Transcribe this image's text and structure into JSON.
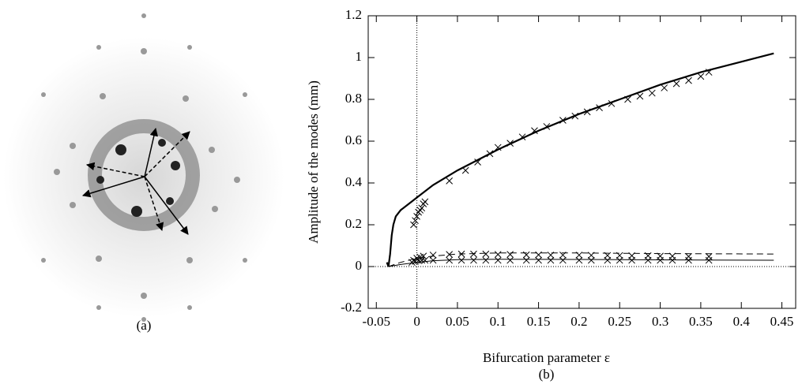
{
  "panel_a": {
    "label": "(a)"
  },
  "chart_data": {
    "type": "line",
    "caption": "(b)",
    "x_label": "Bifurcation parameter ε",
    "y_label": "Amplitude of the modes (mm)",
    "xlim": [
      -0.06,
      0.467
    ],
    "ylim": [
      -0.2,
      1.2
    ],
    "xticks": [
      -0.05,
      0,
      0.05,
      0.1,
      0.15,
      0.2,
      0.25,
      0.3,
      0.35,
      0.4,
      0.45
    ],
    "yticks": [
      -0.2,
      0,
      0.2,
      0.4,
      0.6,
      0.8,
      1,
      1.2
    ],
    "zero_lines": true,
    "series": [
      {
        "style": "solid-thick",
        "color": "#000000",
        "x": [
          -0.037,
          -0.035,
          -0.033,
          -0.031,
          -0.029,
          -0.026,
          -0.02,
          -0.01,
          0,
          0.02,
          0.05,
          0.1,
          0.15,
          0.2,
          0.25,
          0.3,
          0.35,
          0.4,
          0.44
        ],
        "values": [
          0.02,
          0.0,
          0.06,
          0.15,
          0.2,
          0.24,
          0.27,
          0.3,
          0.33,
          0.39,
          0.46,
          0.56,
          0.65,
          0.73,
          0.8,
          0.87,
          0.93,
          0.98,
          1.02
        ]
      },
      {
        "style": "dashed",
        "color": "#000000",
        "x": [
          -0.035,
          -0.02,
          -0.01,
          0,
          0.02,
          0.05,
          0.1,
          0.2,
          0.3,
          0.44
        ],
        "values": [
          0.0,
          0.02,
          0.03,
          0.04,
          0.05,
          0.06,
          0.065,
          0.065,
          0.062,
          0.06
        ]
      },
      {
        "style": "solid-thin",
        "color": "#000000",
        "x": [
          -0.035,
          -0.02,
          0,
          0.02,
          0.05,
          0.1,
          0.2,
          0.3,
          0.44
        ],
        "values": [
          0.0,
          0.01,
          0.02,
          0.028,
          0.033,
          0.035,
          0.034,
          0.032,
          0.03
        ]
      },
      {
        "style": "cross",
        "color": "#000000",
        "x": [
          -0.004,
          -0.002,
          0,
          0.002,
          0.004,
          0.006,
          0.008,
          0.01,
          0.04,
          0.06,
          0.075,
          0.09,
          0.1,
          0.115,
          0.13,
          0.145,
          0.16,
          0.18,
          0.195,
          0.21,
          0.225,
          0.24,
          0.26,
          0.275,
          0.29,
          0.305,
          0.32,
          0.335,
          0.35,
          0.36
        ],
        "values": [
          0.2,
          0.22,
          0.24,
          0.26,
          0.27,
          0.28,
          0.3,
          0.31,
          0.41,
          0.46,
          0.5,
          0.54,
          0.57,
          0.59,
          0.62,
          0.65,
          0.67,
          0.7,
          0.72,
          0.74,
          0.76,
          0.78,
          0.8,
          0.815,
          0.83,
          0.855,
          0.875,
          0.89,
          0.91,
          0.93
        ]
      },
      {
        "style": "cross",
        "color": "#000000",
        "x": [
          -0.004,
          0,
          0.004,
          0.008,
          0.02,
          0.04,
          0.055,
          0.07,
          0.085,
          0.1,
          0.115,
          0.135,
          0.15,
          0.165,
          0.18,
          0.2,
          0.215,
          0.235,
          0.25,
          0.265,
          0.285,
          0.3,
          0.315,
          0.335,
          0.36
        ],
        "values": [
          0.03,
          0.04,
          0.045,
          0.05,
          0.055,
          0.058,
          0.06,
          0.06,
          0.06,
          0.058,
          0.058,
          0.056,
          0.056,
          0.055,
          0.055,
          0.055,
          0.054,
          0.053,
          0.053,
          0.052,
          0.052,
          0.05,
          0.05,
          0.048,
          0.048
        ]
      },
      {
        "style": "cross",
        "color": "#000000",
        "x": [
          -0.006,
          -0.002,
          0.002,
          0.006,
          0.01,
          0.02,
          0.04,
          0.055,
          0.07,
          0.085,
          0.1,
          0.115,
          0.135,
          0.15,
          0.165,
          0.18,
          0.2,
          0.215,
          0.235,
          0.25,
          0.265,
          0.285,
          0.3,
          0.315,
          0.335,
          0.36
        ],
        "values": [
          0.02,
          0.025,
          0.028,
          0.03,
          0.03,
          0.03,
          0.03,
          0.03,
          0.03,
          0.03,
          0.03,
          0.03,
          0.03,
          0.03,
          0.03,
          0.03,
          0.03,
          0.03,
          0.03,
          0.03,
          0.03,
          0.03,
          0.03,
          0.03,
          0.03,
          0.03
        ]
      }
    ]
  }
}
